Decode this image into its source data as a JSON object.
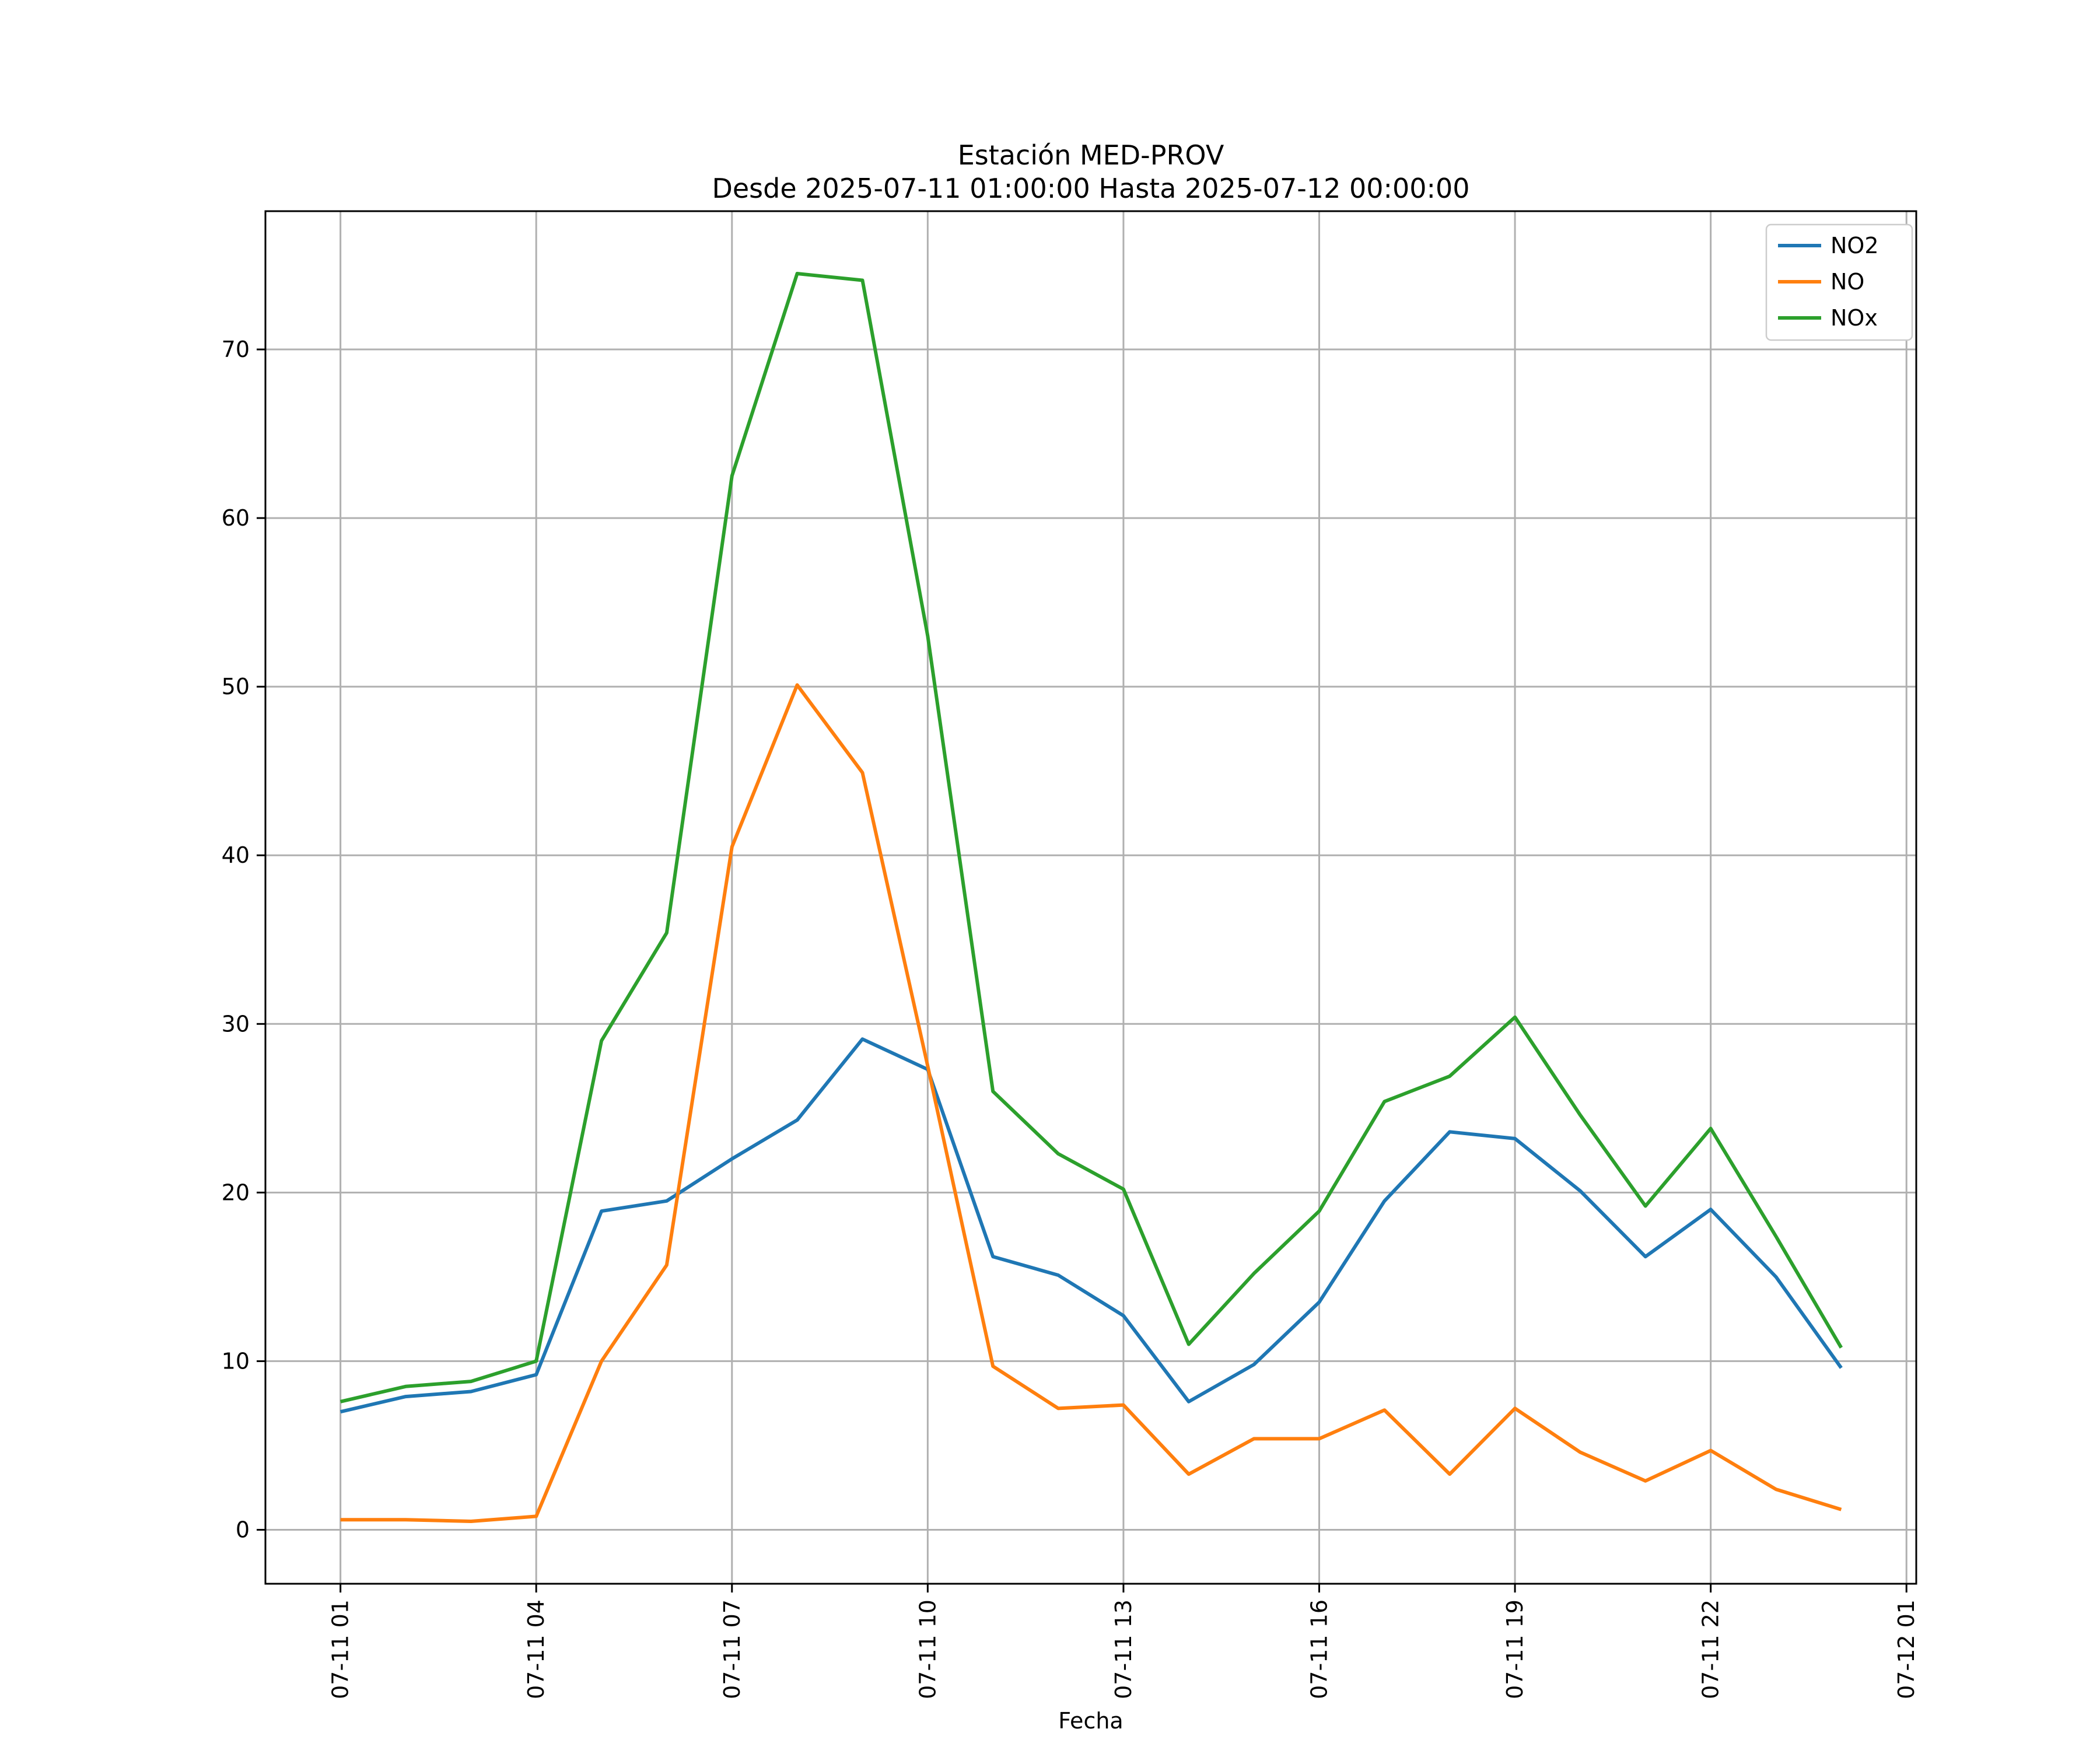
{
  "figure": {
    "title": "Estación MED-PROV",
    "subtitle": "Desde 2025-07-11 01:00:00 Hasta 2025-07-12 00:00:00",
    "xlabel": "Fecha"
  },
  "chart_data": {
    "type": "line",
    "title": "Estación MED-PROV",
    "subtitle": "Desde 2025-07-11 01:00:00 Hasta 2025-07-12 00:00:00",
    "xlabel": "Fecha",
    "ylabel": "",
    "grid": true,
    "legend_position": "upper right",
    "xlim": [
      -0.15,
      25.15
    ],
    "ylim": [
      -3.2,
      78.2
    ],
    "x": [
      1,
      2,
      3,
      4,
      5,
      6,
      7,
      8,
      9,
      10,
      11,
      12,
      13,
      14,
      15,
      16,
      17,
      18,
      19,
      20,
      21,
      22,
      23,
      24
    ],
    "x_tick_positions": [
      1,
      4,
      7,
      10,
      13,
      16,
      19,
      22,
      25
    ],
    "x_tick_labels": [
      "07-11 01",
      "07-11 04",
      "07-11 07",
      "07-11 10",
      "07-11 13",
      "07-11 16",
      "07-11 19",
      "07-11 22",
      "07-12 01"
    ],
    "y_ticks": [
      0,
      10,
      20,
      30,
      40,
      50,
      60,
      70
    ],
    "grid_color": "#b0b0b0",
    "frame_color": "#000000",
    "series": [
      {
        "name": "NO2",
        "color": "#1f77b4",
        "values": [
          7.0,
          7.9,
          8.2,
          9.2,
          18.9,
          19.5,
          22.0,
          24.3,
          29.1,
          27.3,
          16.2,
          15.1,
          12.7,
          7.6,
          9.8,
          13.5,
          19.5,
          23.6,
          23.2,
          20.1,
          16.2,
          19.0,
          15.0,
          9.6
        ]
      },
      {
        "name": "NO",
        "color": "#ff7f0e",
        "values": [
          0.6,
          0.6,
          0.5,
          0.8,
          10.0,
          15.7,
          40.5,
          50.1,
          44.9,
          27.5,
          9.7,
          7.2,
          7.4,
          3.3,
          5.4,
          5.4,
          7.1,
          3.3,
          7.2,
          4.6,
          2.9,
          4.7,
          2.4,
          1.2
        ]
      },
      {
        "name": "NOx",
        "color": "#2ca02c",
        "values": [
          7.6,
          8.5,
          8.8,
          10.0,
          29.0,
          35.4,
          62.5,
          74.5,
          74.1,
          53.0,
          26.0,
          22.3,
          20.2,
          11.0,
          15.2,
          18.9,
          25.4,
          26.9,
          30.4,
          24.6,
          19.2,
          23.8,
          17.4,
          10.8
        ]
      }
    ]
  }
}
